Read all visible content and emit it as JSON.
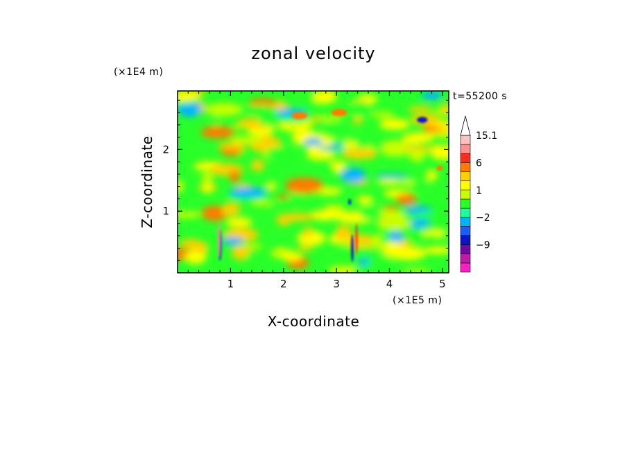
{
  "chart_data": {
    "type": "heatmap",
    "title": "zonal velocity",
    "xlabel": "X-coordinate",
    "ylabel": "Z-coordinate",
    "x_unit": "(×1E5 m)",
    "y_unit": "(×1E4 m)",
    "time_label": "t=55200 s",
    "xlim": [
      0,
      5.12
    ],
    "ylim": [
      0,
      2.95
    ],
    "x_ticks": [
      1,
      2,
      3,
      4,
      5
    ],
    "x_tick_labels": [
      "1",
      "2",
      "3",
      "4",
      "5"
    ],
    "y_ticks": [
      1,
      2
    ],
    "y_tick_labels": [
      "1",
      "2"
    ],
    "colorbar": {
      "levels": [
        -15,
        -12,
        -9,
        -6,
        -3,
        -2,
        -1,
        0,
        1,
        2,
        3,
        6,
        9,
        12,
        15.1
      ],
      "labels": [
        {
          "value": 15.1,
          "text": "15.1"
        },
        {
          "value": 6,
          "text": "6"
        },
        {
          "value": 1,
          "text": "1"
        },
        {
          "value": -2,
          "text": "−2"
        },
        {
          "value": -9,
          "text": "−9"
        }
      ],
      "colors": [
        "#ff1fc0",
        "#c01aa8",
        "#6e0aa0",
        "#0e14c8",
        "#1e5cff",
        "#00b4ff",
        "#18ff9a",
        "#28ff28",
        "#c8ff00",
        "#ffff00",
        "#ffd000",
        "#ff7a00",
        "#ff2a1a",
        "#ff8f8f",
        "#ffc0c0"
      ],
      "extend_max": true
    },
    "data_features": [
      {
        "x": 0.8,
        "z": 0.45,
        "value": -9,
        "width": 0.06,
        "height": 0.5
      },
      {
        "x": 0.78,
        "z": 0.55,
        "value": 9,
        "width": 0.04,
        "height": 0.6
      },
      {
        "x": 3.3,
        "z": 0.4,
        "value": -8,
        "width": 0.05,
        "height": 0.45
      },
      {
        "x": 3.38,
        "z": 0.55,
        "value": 7,
        "width": 0.04,
        "height": 0.5
      },
      {
        "x": 3.25,
        "z": 1.15,
        "value": -8,
        "width": 0.05,
        "height": 0.1
      },
      {
        "x": 4.62,
        "z": 2.48,
        "value": -8,
        "width": 0.2,
        "height": 0.1
      },
      {
        "x": 3.05,
        "z": 2.6,
        "value": 5,
        "width": 0.3,
        "height": 0.12
      },
      {
        "x": 2.3,
        "z": 2.55,
        "value": 3,
        "width": 0.3,
        "height": 0.12
      },
      {
        "x": 4.95,
        "z": 1.7,
        "value": 5,
        "width": 0.12,
        "height": 0.08
      }
    ]
  }
}
